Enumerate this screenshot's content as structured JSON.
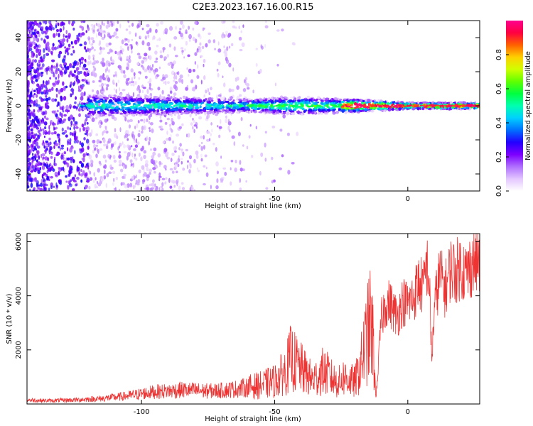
{
  "title": "C2E3.2023.167.16.00.R15",
  "chart_data": [
    {
      "type": "heatmap",
      "panel": "spectrogram",
      "xlabel": "Height of straight line (km)",
      "ylabel": "Frequency (Hz)",
      "xlim": [
        -143,
        27
      ],
      "ylim": [
        -50,
        50
      ],
      "x_ticks": [
        -100,
        -50,
        0
      ],
      "y_ticks": [
        -40,
        -20,
        0,
        20,
        40
      ],
      "colorbar": {
        "label": "Normalized spectral amplitude",
        "range": [
          0,
          1
        ],
        "ticks": [
          "0.0",
          "0.2",
          "0.4",
          "0.6",
          "0.8"
        ],
        "colormap": [
          "#ffffff",
          "#e3c6ff",
          "#b070ff",
          "#7d00ff",
          "#2200ff",
          "#0070ff",
          "#00d0ff",
          "#00ffb0",
          "#00ff40",
          "#60ff00",
          "#d0ff00",
          "#ffd000",
          "#ff6000",
          "#ff0040",
          "#ff0090"
        ]
      },
      "features": {
        "scatter_noise_region_km": [
          -143,
          -95
        ],
        "center_band_frequency_hz": 0,
        "center_band_halfwidth_hz": [
          [
            -120,
            5
          ],
          [
            -60,
            3
          ],
          [
            -40,
            4
          ],
          [
            -20,
            3
          ],
          [
            0,
            1.5
          ],
          [
            27,
            1.5
          ]
        ]
      }
    },
    {
      "type": "line",
      "panel": "snr",
      "xlabel": "Height of straight line (km)",
      "ylabel": "SNR (10 * v/v)",
      "xlim": [
        -143,
        27
      ],
      "ylim": [
        0,
        6300
      ],
      "x_ticks": [
        -100,
        -50,
        0
      ],
      "y_ticks": [
        2000,
        4000,
        6000
      ],
      "color": "#ee3333",
      "series": [
        {
          "x": [
            -143,
            -135,
            -125,
            -115,
            -105,
            -100,
            -95,
            -90,
            -85,
            -80,
            -75,
            -70,
            -65,
            -60,
            -55,
            -50,
            -46,
            -44,
            -42,
            -40,
            -38,
            -36,
            -34,
            -32,
            -30,
            -28,
            -26,
            -24,
            -22,
            -20,
            -18,
            -16,
            -14,
            -13,
            -12,
            -11,
            -10,
            -8,
            -6,
            -4,
            -2,
            0,
            2,
            4,
            6,
            7,
            8,
            9,
            10,
            12,
            14,
            16,
            18,
            20,
            22,
            24,
            27
          ],
          "values": [
            150,
            120,
            150,
            200,
            300,
            380,
            450,
            480,
            520,
            500,
            480,
            500,
            550,
            620,
            700,
            850,
            1200,
            1700,
            1500,
            1300,
            1100,
            900,
            1000,
            1200,
            1100,
            900,
            800,
            1000,
            900,
            800,
            1300,
            2200,
            3000,
            2200,
            200,
            1500,
            3100,
            3800,
            3600,
            3200,
            3800,
            3700,
            3900,
            4500,
            4300,
            5200,
            4700,
            1600,
            3600,
            4800,
            4200,
            5000,
            4900,
            5100,
            4800,
            5200,
            5300
          ]
        }
      ]
    }
  ]
}
